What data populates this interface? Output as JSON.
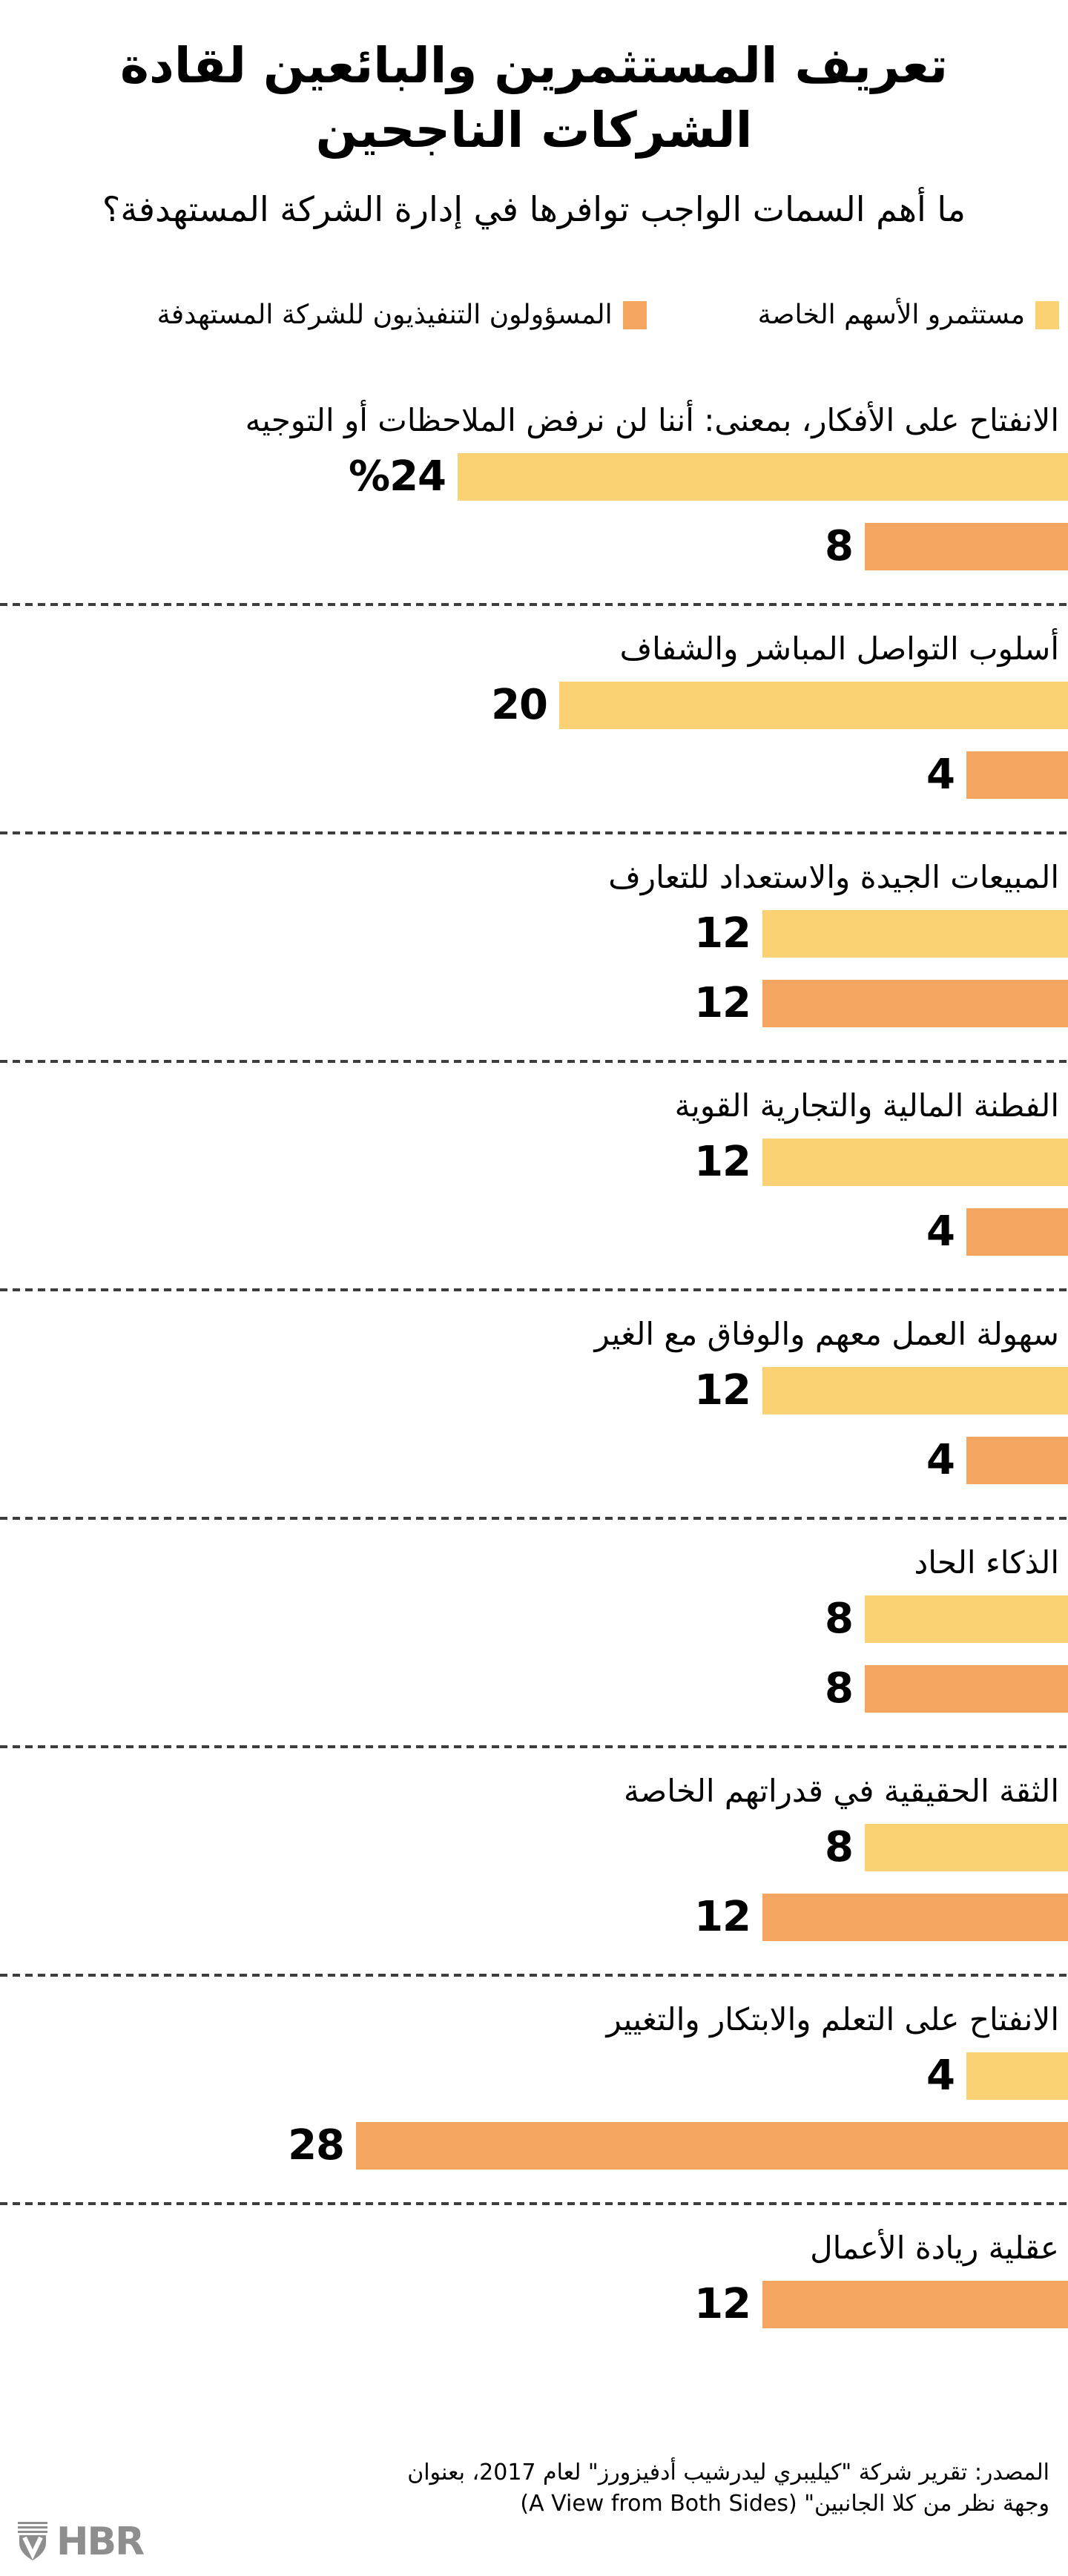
{
  "header": {
    "title_lines": [
      "تعريف المستثمرين والبائعين لقادة",
      "الشركات الناجحين"
    ],
    "subtitle": "ما أهم السمات الواجب توافرها في إدارة الشركة المستهدفة؟"
  },
  "chart_data": {
    "type": "bar",
    "orientation": "horizontal",
    "direction": "rtl",
    "title": "تعريف المستثمرين والبائعين لقادة الشركات الناجحين",
    "subtitle": "ما أهم السمات الواجب توافرها في إدارة الشركة المستهدفة؟",
    "value_unit": "percent",
    "xlim": [
      0,
      28
    ],
    "legend_position": "top",
    "grid": false,
    "separator_style": "dashed",
    "series": [
      {
        "key": "investors",
        "name": "مستثمرو الأسهم الخاصة",
        "color": "#FAD173"
      },
      {
        "key": "executives",
        "name": "المسؤولون التنفيذيون للشركة المستهدفة",
        "color": "#F4A55F"
      }
    ],
    "groups": [
      {
        "label": "الانفتاح على الأفكار، بمعنى: أننا لن نرفض الملاحظات أو التوجيه",
        "bars": [
          {
            "series_index": 0,
            "value": 24,
            "display": "%24"
          },
          {
            "series_index": 1,
            "value": 8,
            "display": "8"
          }
        ]
      },
      {
        "label": "أسلوب التواصل المباشر والشفاف",
        "bars": [
          {
            "series_index": 0,
            "value": 20,
            "display": "20"
          },
          {
            "series_index": 1,
            "value": 4,
            "display": "4"
          }
        ]
      },
      {
        "label": "المبيعات الجيدة والاستعداد للتعارف",
        "bars": [
          {
            "series_index": 0,
            "value": 12,
            "display": "12"
          },
          {
            "series_index": 1,
            "value": 12,
            "display": "12"
          }
        ]
      },
      {
        "label": "الفطنة المالية والتجارية القوية",
        "bars": [
          {
            "series_index": 0,
            "value": 12,
            "display": "12"
          },
          {
            "series_index": 1,
            "value": 4,
            "display": "4"
          }
        ]
      },
      {
        "label": "سهولة العمل معهم والوفاق مع الغير",
        "bars": [
          {
            "series_index": 0,
            "value": 12,
            "display": "12"
          },
          {
            "series_index": 1,
            "value": 4,
            "display": "4"
          }
        ]
      },
      {
        "label": "الذكاء الحاد",
        "bars": [
          {
            "series_index": 0,
            "value": 8,
            "display": "8"
          },
          {
            "series_index": 1,
            "value": 8,
            "display": "8"
          }
        ]
      },
      {
        "label": "الثقة الحقيقية في قدراتهم الخاصة",
        "bars": [
          {
            "series_index": 0,
            "value": 8,
            "display": "8"
          },
          {
            "series_index": 1,
            "value": 12,
            "display": "12"
          }
        ]
      },
      {
        "label": "الانفتاح على التعلم والابتكار والتغيير",
        "bars": [
          {
            "series_index": 0,
            "value": 4,
            "display": "4"
          },
          {
            "series_index": 1,
            "value": 28,
            "display": "28"
          }
        ]
      },
      {
        "label": "عقلية ريادة الأعمال",
        "bars": [
          {
            "series_index": 1,
            "value": 12,
            "display": "12"
          }
        ]
      }
    ]
  },
  "footer": {
    "source_lines": [
      "المصدر: تقرير شركة \"كيليبري ليدرشيب أدفيزورز\" لعام 2017، بعنوان",
      "وجهة نظر من كلا الجانبين\" (A View from Both Sides)"
    ],
    "logo_text": "HBR"
  },
  "colors": {
    "investors_bar": "#FAD173",
    "executives_bar": "#F4A55F",
    "separator": "#3D3D3D",
    "logo_gray": "#8E8E8E",
    "background": "#FFFFFF",
    "text": "#000000"
  }
}
